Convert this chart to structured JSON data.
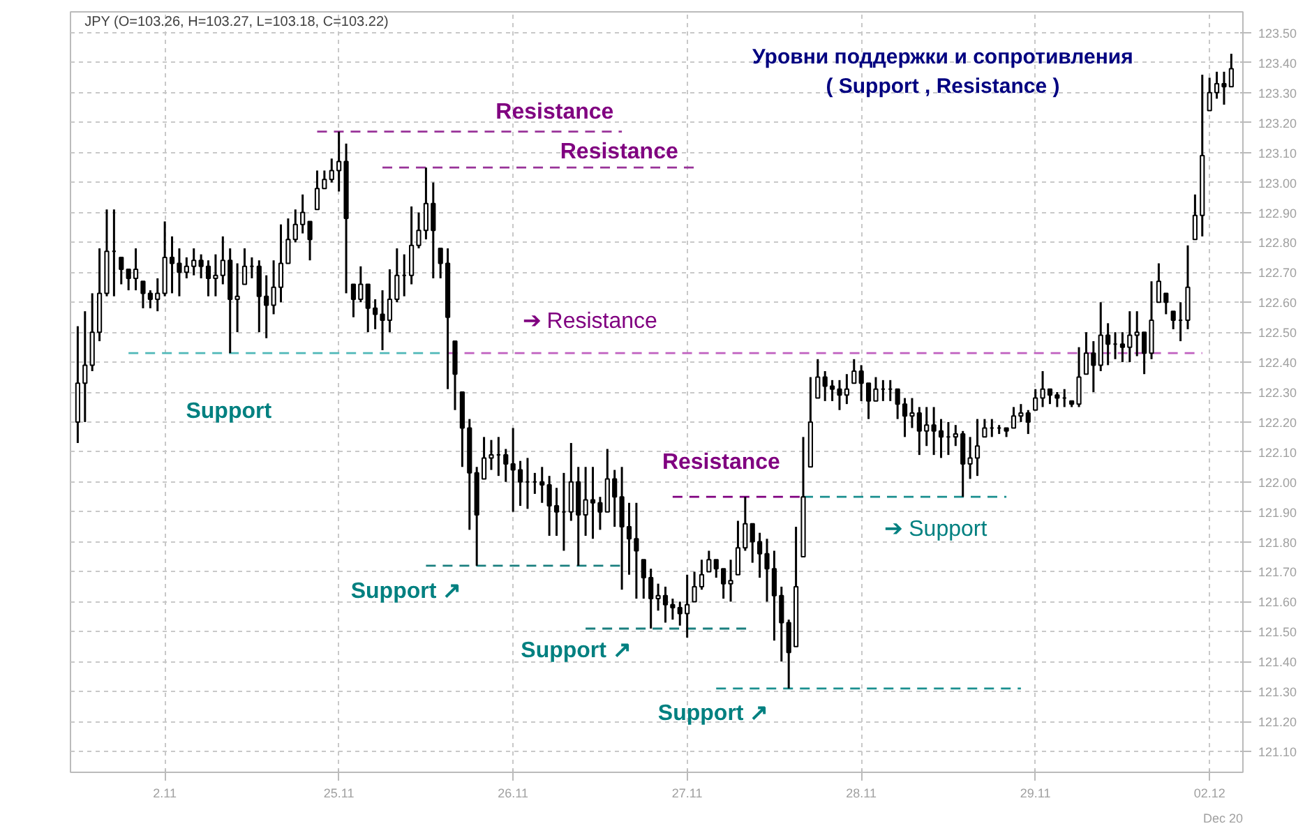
{
  "chart_data": {
    "type": "candlestick",
    "title": "Уровни поддержки и сопротивления",
    "subtitle": "( Support , Resistance )",
    "categories": [
      null,
      null,
      null,
      null,
      null,
      null,
      null,
      null,
      null,
      null,
      null,
      null,
      "2.11",
      null,
      null,
      null,
      null,
      null,
      null,
      null,
      null,
      null,
      null,
      null,
      null,
      null,
      null,
      null,
      null,
      null,
      null,
      null,
      null,
      null,
      null,
      null,
      "25.11",
      null,
      null,
      null,
      null,
      null,
      null,
      null,
      null,
      null,
      null,
      null,
      null,
      null,
      null,
      null,
      null,
      null,
      null,
      null,
      null,
      null,
      null,
      null,
      "26.11",
      null,
      null,
      null,
      null,
      null,
      null,
      null,
      null,
      null,
      null,
      null,
      null,
      null,
      null,
      null,
      null,
      null,
      null,
      null,
      null,
      null,
      null,
      null,
      "27.11",
      null,
      null,
      null,
      null,
      null,
      null,
      null,
      null,
      null,
      null,
      null,
      null,
      null,
      null,
      null,
      null,
      null,
      null,
      null,
      null,
      null,
      null,
      null,
      "28.11",
      null,
      null,
      null,
      null,
      null,
      null,
      null,
      null,
      null,
      null,
      null,
      null,
      null,
      null,
      null,
      null,
      null,
      null,
      null,
      null,
      null,
      null,
      null,
      "29.11",
      null,
      null,
      null,
      null,
      null,
      null,
      null,
      null,
      null,
      null,
      null,
      null,
      null,
      null,
      null,
      null,
      null,
      null,
      null,
      null,
      null,
      null,
      null,
      "02.12",
      null,
      null,
      null
    ],
    "ohlc": [
      [
        122.2,
        122.52,
        122.13,
        122.33
      ],
      [
        122.33,
        122.57,
        122.2,
        122.39
      ],
      [
        122.39,
        122.63,
        122.37,
        122.5
      ],
      [
        122.5,
        122.78,
        122.47,
        122.63
      ],
      [
        122.63,
        122.91,
        122.62,
        122.77
      ],
      [
        122.77,
        122.91,
        122.62,
        122.77
      ],
      [
        122.75,
        122.75,
        122.66,
        122.71
      ],
      [
        122.71,
        122.71,
        122.64,
        122.68
      ],
      [
        122.68,
        122.78,
        122.64,
        122.71
      ],
      [
        122.67,
        122.67,
        122.58,
        122.63
      ],
      [
        122.63,
        122.64,
        122.58,
        122.61
      ],
      [
        122.61,
        122.68,
        122.57,
        122.63
      ],
      [
        122.63,
        122.87,
        122.62,
        122.75
      ],
      [
        122.75,
        122.82,
        122.63,
        122.73
      ],
      [
        122.73,
        122.78,
        122.62,
        122.7
      ],
      [
        122.7,
        122.75,
        122.68,
        122.72
      ],
      [
        122.72,
        122.78,
        122.69,
        122.74
      ],
      [
        122.74,
        122.76,
        122.68,
        122.72
      ],
      [
        122.72,
        122.74,
        122.62,
        122.68
      ],
      [
        122.68,
        122.76,
        122.62,
        122.69
      ],
      [
        122.69,
        122.82,
        122.66,
        122.74
      ],
      [
        122.74,
        122.78,
        122.43,
        122.61
      ],
      [
        122.61,
        122.73,
        122.5,
        122.62
      ],
      [
        122.66,
        122.78,
        122.66,
        122.72
      ],
      [
        122.72,
        122.75,
        122.68,
        122.72
      ],
      [
        122.72,
        122.74,
        122.5,
        122.62
      ],
      [
        122.62,
        122.69,
        122.48,
        122.59
      ],
      [
        122.59,
        122.74,
        122.56,
        122.65
      ],
      [
        122.65,
        122.86,
        122.6,
        122.73
      ],
      [
        122.73,
        122.88,
        122.73,
        122.81
      ],
      [
        122.81,
        122.91,
        122.8,
        122.86
      ],
      [
        122.86,
        122.96,
        122.83,
        122.9
      ],
      [
        122.87,
        122.87,
        122.74,
        122.81
      ],
      [
        122.91,
        123.04,
        122.91,
        122.98
      ],
      [
        122.98,
        123.04,
        122.98,
        123.01
      ],
      [
        123.01,
        123.08,
        123.0,
        123.04
      ],
      [
        123.04,
        123.17,
        122.97,
        123.07
      ],
      [
        123.07,
        123.13,
        122.63,
        122.88
      ],
      [
        122.66,
        122.66,
        122.55,
        122.61
      ],
      [
        122.61,
        122.72,
        122.6,
        122.66
      ],
      [
        122.66,
        122.66,
        122.5,
        122.58
      ],
      [
        122.58,
        122.61,
        122.51,
        122.56
      ],
      [
        122.56,
        122.64,
        122.44,
        122.54
      ],
      [
        122.54,
        122.71,
        122.5,
        122.61
      ],
      [
        122.61,
        122.78,
        122.6,
        122.69
      ],
      [
        122.69,
        122.76,
        122.62,
        122.69
      ],
      [
        122.69,
        122.92,
        122.66,
        122.79
      ],
      [
        122.79,
        122.9,
        122.78,
        122.84
      ],
      [
        122.84,
        123.05,
        122.81,
        122.93
      ],
      [
        122.93,
        123.0,
        122.68,
        122.84
      ],
      [
        122.78,
        122.78,
        122.68,
        122.73
      ],
      [
        122.73,
        122.78,
        122.31,
        122.55
      ],
      [
        122.47,
        122.47,
        122.24,
        122.36
      ],
      [
        122.3,
        122.3,
        122.05,
        122.18
      ],
      [
        122.18,
        122.21,
        121.84,
        122.03
      ],
      [
        122.03,
        122.05,
        121.72,
        121.89
      ],
      [
        122.01,
        122.15,
        122.01,
        122.08
      ],
      [
        122.08,
        122.14,
        122.04,
        122.09
      ],
      [
        122.09,
        122.15,
        122.02,
        122.09
      ],
      [
        122.09,
        122.11,
        122.0,
        122.06
      ],
      [
        122.06,
        122.18,
        121.9,
        122.04
      ],
      [
        122.04,
        122.07,
        121.92,
        122.0
      ],
      [
        122.0,
        122.08,
        121.91,
        122.0
      ],
      [
        122.0,
        122.03,
        121.96,
        122.0
      ],
      [
        122.0,
        122.05,
        121.93,
        121.99
      ],
      [
        121.99,
        122.02,
        121.82,
        121.92
      ],
      [
        121.92,
        121.98,
        121.82,
        121.9
      ],
      [
        121.9,
        122.03,
        121.77,
        121.9
      ],
      [
        121.9,
        122.13,
        121.87,
        122.0
      ],
      [
        122.0,
        122.05,
        121.72,
        121.89
      ],
      [
        121.89,
        122.05,
        121.82,
        121.94
      ],
      [
        121.94,
        122.05,
        121.81,
        121.93
      ],
      [
        121.93,
        121.95,
        121.84,
        121.9
      ],
      [
        121.9,
        122.11,
        121.9,
        122.01
      ],
      [
        122.01,
        122.04,
        121.85,
        121.95
      ],
      [
        121.95,
        122.05,
        121.64,
        121.85
      ],
      [
        121.85,
        121.93,
        121.69,
        121.81
      ],
      [
        121.81,
        121.93,
        121.61,
        121.77
      ],
      [
        121.74,
        121.74,
        121.61,
        121.68
      ],
      [
        121.68,
        121.71,
        121.51,
        121.61
      ],
      [
        121.61,
        121.66,
        121.57,
        121.62
      ],
      [
        121.62,
        121.65,
        121.53,
        121.59
      ],
      [
        121.59,
        121.61,
        121.54,
        121.58
      ],
      [
        121.58,
        121.6,
        121.52,
        121.56
      ],
      [
        121.56,
        121.69,
        121.48,
        121.59
      ],
      [
        121.6,
        121.7,
        121.6,
        121.65
      ],
      [
        121.65,
        121.74,
        121.64,
        121.69
      ],
      [
        121.7,
        121.77,
        121.7,
        121.74
      ],
      [
        121.74,
        121.74,
        121.68,
        121.71
      ],
      [
        121.71,
        121.71,
        121.61,
        121.66
      ],
      [
        121.66,
        121.74,
        121.6,
        121.67
      ],
      [
        121.69,
        121.87,
        121.69,
        121.78
      ],
      [
        121.78,
        121.95,
        121.77,
        121.86
      ],
      [
        121.86,
        121.86,
        121.73,
        121.8
      ],
      [
        121.8,
        121.83,
        121.68,
        121.76
      ],
      [
        121.76,
        121.81,
        121.6,
        121.71
      ],
      [
        121.71,
        121.77,
        121.47,
        121.62
      ],
      [
        121.62,
        121.65,
        121.4,
        121.53
      ],
      [
        121.53,
        121.54,
        121.31,
        121.43
      ],
      [
        121.45,
        121.85,
        121.45,
        121.65
      ],
      [
        121.75,
        122.15,
        121.75,
        121.95
      ],
      [
        122.05,
        122.35,
        122.05,
        122.2
      ],
      [
        122.28,
        122.41,
        122.28,
        122.35
      ],
      [
        122.35,
        122.37,
        122.27,
        122.32
      ],
      [
        122.32,
        122.34,
        122.27,
        122.31
      ],
      [
        122.31,
        122.34,
        122.24,
        122.29
      ],
      [
        122.29,
        122.36,
        122.26,
        122.31
      ],
      [
        122.33,
        122.41,
        122.33,
        122.37
      ],
      [
        122.37,
        122.39,
        122.27,
        122.33
      ],
      [
        122.33,
        122.33,
        122.21,
        122.27
      ],
      [
        122.27,
        122.35,
        122.27,
        122.31
      ],
      [
        122.31,
        122.34,
        122.27,
        122.31
      ],
      [
        122.31,
        122.34,
        122.27,
        122.31
      ],
      [
        122.31,
        122.31,
        122.21,
        122.26
      ],
      [
        122.26,
        122.28,
        122.15,
        122.22
      ],
      [
        122.22,
        122.28,
        122.18,
        122.23
      ],
      [
        122.23,
        122.25,
        122.09,
        122.17
      ],
      [
        122.17,
        122.25,
        122.12,
        122.19
      ],
      [
        122.19,
        122.25,
        122.09,
        122.17
      ],
      [
        122.17,
        122.21,
        122.08,
        122.15
      ],
      [
        122.15,
        122.2,
        122.09,
        122.15
      ],
      [
        122.15,
        122.19,
        122.12,
        122.16
      ],
      [
        122.16,
        122.17,
        121.95,
        122.06
      ],
      [
        122.06,
        122.15,
        122.01,
        122.08
      ],
      [
        122.08,
        122.21,
        122.02,
        122.12
      ],
      [
        122.15,
        122.21,
        122.15,
        122.18
      ],
      [
        122.18,
        122.21,
        122.15,
        122.18
      ],
      [
        122.18,
        122.19,
        122.16,
        122.18
      ],
      [
        122.18,
        122.18,
        122.15,
        122.17
      ],
      [
        122.18,
        122.25,
        122.18,
        122.22
      ],
      [
        122.22,
        122.26,
        122.2,
        122.23
      ],
      [
        122.23,
        122.24,
        122.16,
        122.2
      ],
      [
        122.24,
        122.31,
        122.24,
        122.28
      ],
      [
        122.28,
        122.37,
        122.25,
        122.31
      ],
      [
        122.31,
        122.31,
        122.26,
        122.29
      ],
      [
        122.29,
        122.3,
        122.25,
        122.28
      ],
      [
        122.28,
        122.31,
        122.25,
        122.28
      ],
      [
        122.27,
        122.27,
        122.25,
        122.26
      ],
      [
        122.26,
        122.45,
        122.25,
        122.35
      ],
      [
        122.36,
        122.5,
        122.36,
        122.43
      ],
      [
        122.43,
        122.47,
        122.3,
        122.39
      ],
      [
        122.39,
        122.6,
        122.37,
        122.49
      ],
      [
        122.49,
        122.53,
        122.39,
        122.46
      ],
      [
        122.46,
        122.5,
        122.41,
        122.46
      ],
      [
        122.46,
        122.5,
        122.4,
        122.45
      ],
      [
        122.45,
        122.57,
        122.4,
        122.49
      ],
      [
        122.49,
        122.57,
        122.42,
        122.5
      ],
      [
        122.5,
        122.5,
        122.36,
        122.43
      ],
      [
        122.43,
        122.67,
        122.41,
        122.54
      ],
      [
        122.6,
        122.73,
        122.6,
        122.67
      ],
      [
        122.63,
        122.63,
        122.56,
        122.6
      ],
      [
        122.57,
        122.57,
        122.51,
        122.54
      ],
      [
        122.54,
        122.6,
        122.47,
        122.54
      ],
      [
        122.54,
        122.79,
        122.51,
        122.65
      ],
      [
        122.81,
        122.96,
        122.81,
        122.89
      ],
      [
        122.89,
        123.36,
        122.82,
        123.09
      ],
      [
        123.24,
        123.35,
        123.24,
        123.3
      ],
      [
        123.3,
        123.37,
        123.28,
        123.33
      ],
      [
        123.33,
        123.37,
        123.26,
        123.32
      ],
      [
        123.32,
        123.43,
        123.32,
        123.38
      ]
    ],
    "color": "#000000",
    "ref_lines": [
      {
        "axis": "y",
        "value": 123.17,
        "label": "Resistance",
        "color": "#993399",
        "line_style": "dashed"
      },
      {
        "axis": "y",
        "value": 123.05,
        "label": "Resistance",
        "color": "#993399",
        "line_style": "dashed"
      },
      {
        "axis": "y",
        "value": 122.43,
        "label": "➔ Resistance",
        "color": "#c060c0",
        "line_style": "dashed"
      },
      {
        "axis": "y",
        "value": 122.43,
        "label": "Support",
        "color": "#4fb8b8",
        "line_style": "dashed"
      },
      {
        "axis": "y",
        "value": 121.95,
        "label": "Resistance",
        "color": "#800080",
        "line_style": "dashed"
      },
      {
        "axis": "y",
        "value": 121.95,
        "label": "➔ Support",
        "color": "#1a8f8f",
        "line_style": "dashed"
      },
      {
        "axis": "y",
        "value": 121.72,
        "label": "Support ↗",
        "color": "#1a7f7f",
        "line_style": "dashed"
      },
      {
        "axis": "y",
        "value": 121.51,
        "label": "Support ↗",
        "color": "#1a7f7f",
        "line_style": "dashed"
      },
      {
        "axis": "y",
        "value": 121.31,
        "label": "Support ↗",
        "color": "#1a8f8f",
        "line_style": "dashed"
      }
    ],
    "annotations": [
      "JPY (O=103.26, H=103.27, L=103.18, C=103.22)",
      "Dec 20"
    ],
    "ylim": [
      121.03,
      123.57
    ],
    "yticks": [
      {
        "value": 121.1,
        "label": "121.10"
      },
      {
        "value": 121.2,
        "label": "121.20"
      },
      {
        "value": 121.3,
        "label": "121.30"
      },
      {
        "value": 121.4,
        "label": "121.40"
      },
      {
        "value": 121.5,
        "label": "121.50"
      },
      {
        "value": 121.6,
        "label": "121.60"
      },
      {
        "value": 121.7,
        "label": "121.70"
      },
      {
        "value": 121.8,
        "label": "121.80"
      },
      {
        "value": 121.9,
        "label": "121.90"
      },
      {
        "value": 122,
        "label": "122.00"
      },
      {
        "value": 122.1,
        "label": "122.10"
      },
      {
        "value": 122.2,
        "label": "122.20"
      },
      {
        "value": 122.3,
        "label": "122.30"
      },
      {
        "value": 122.4,
        "label": "122.40"
      },
      {
        "value": 122.5,
        "label": "122.50"
      },
      {
        "value": 122.6,
        "label": "122.60"
      },
      {
        "value": 122.7,
        "label": "122.70"
      },
      {
        "value": 122.8,
        "label": "122.80"
      },
      {
        "value": 122.9,
        "label": "122.90"
      },
      {
        "value": 123,
        "label": "123.00"
      },
      {
        "value": 123.1,
        "label": "123.10"
      },
      {
        "value": 123.2,
        "label": "123.20"
      },
      {
        "value": 123.3,
        "label": "123.30"
      },
      {
        "value": 123.4,
        "label": "123.40"
      },
      {
        "value": 123.5,
        "label": "123.50"
      }
    ],
    "grid": true
  }
}
